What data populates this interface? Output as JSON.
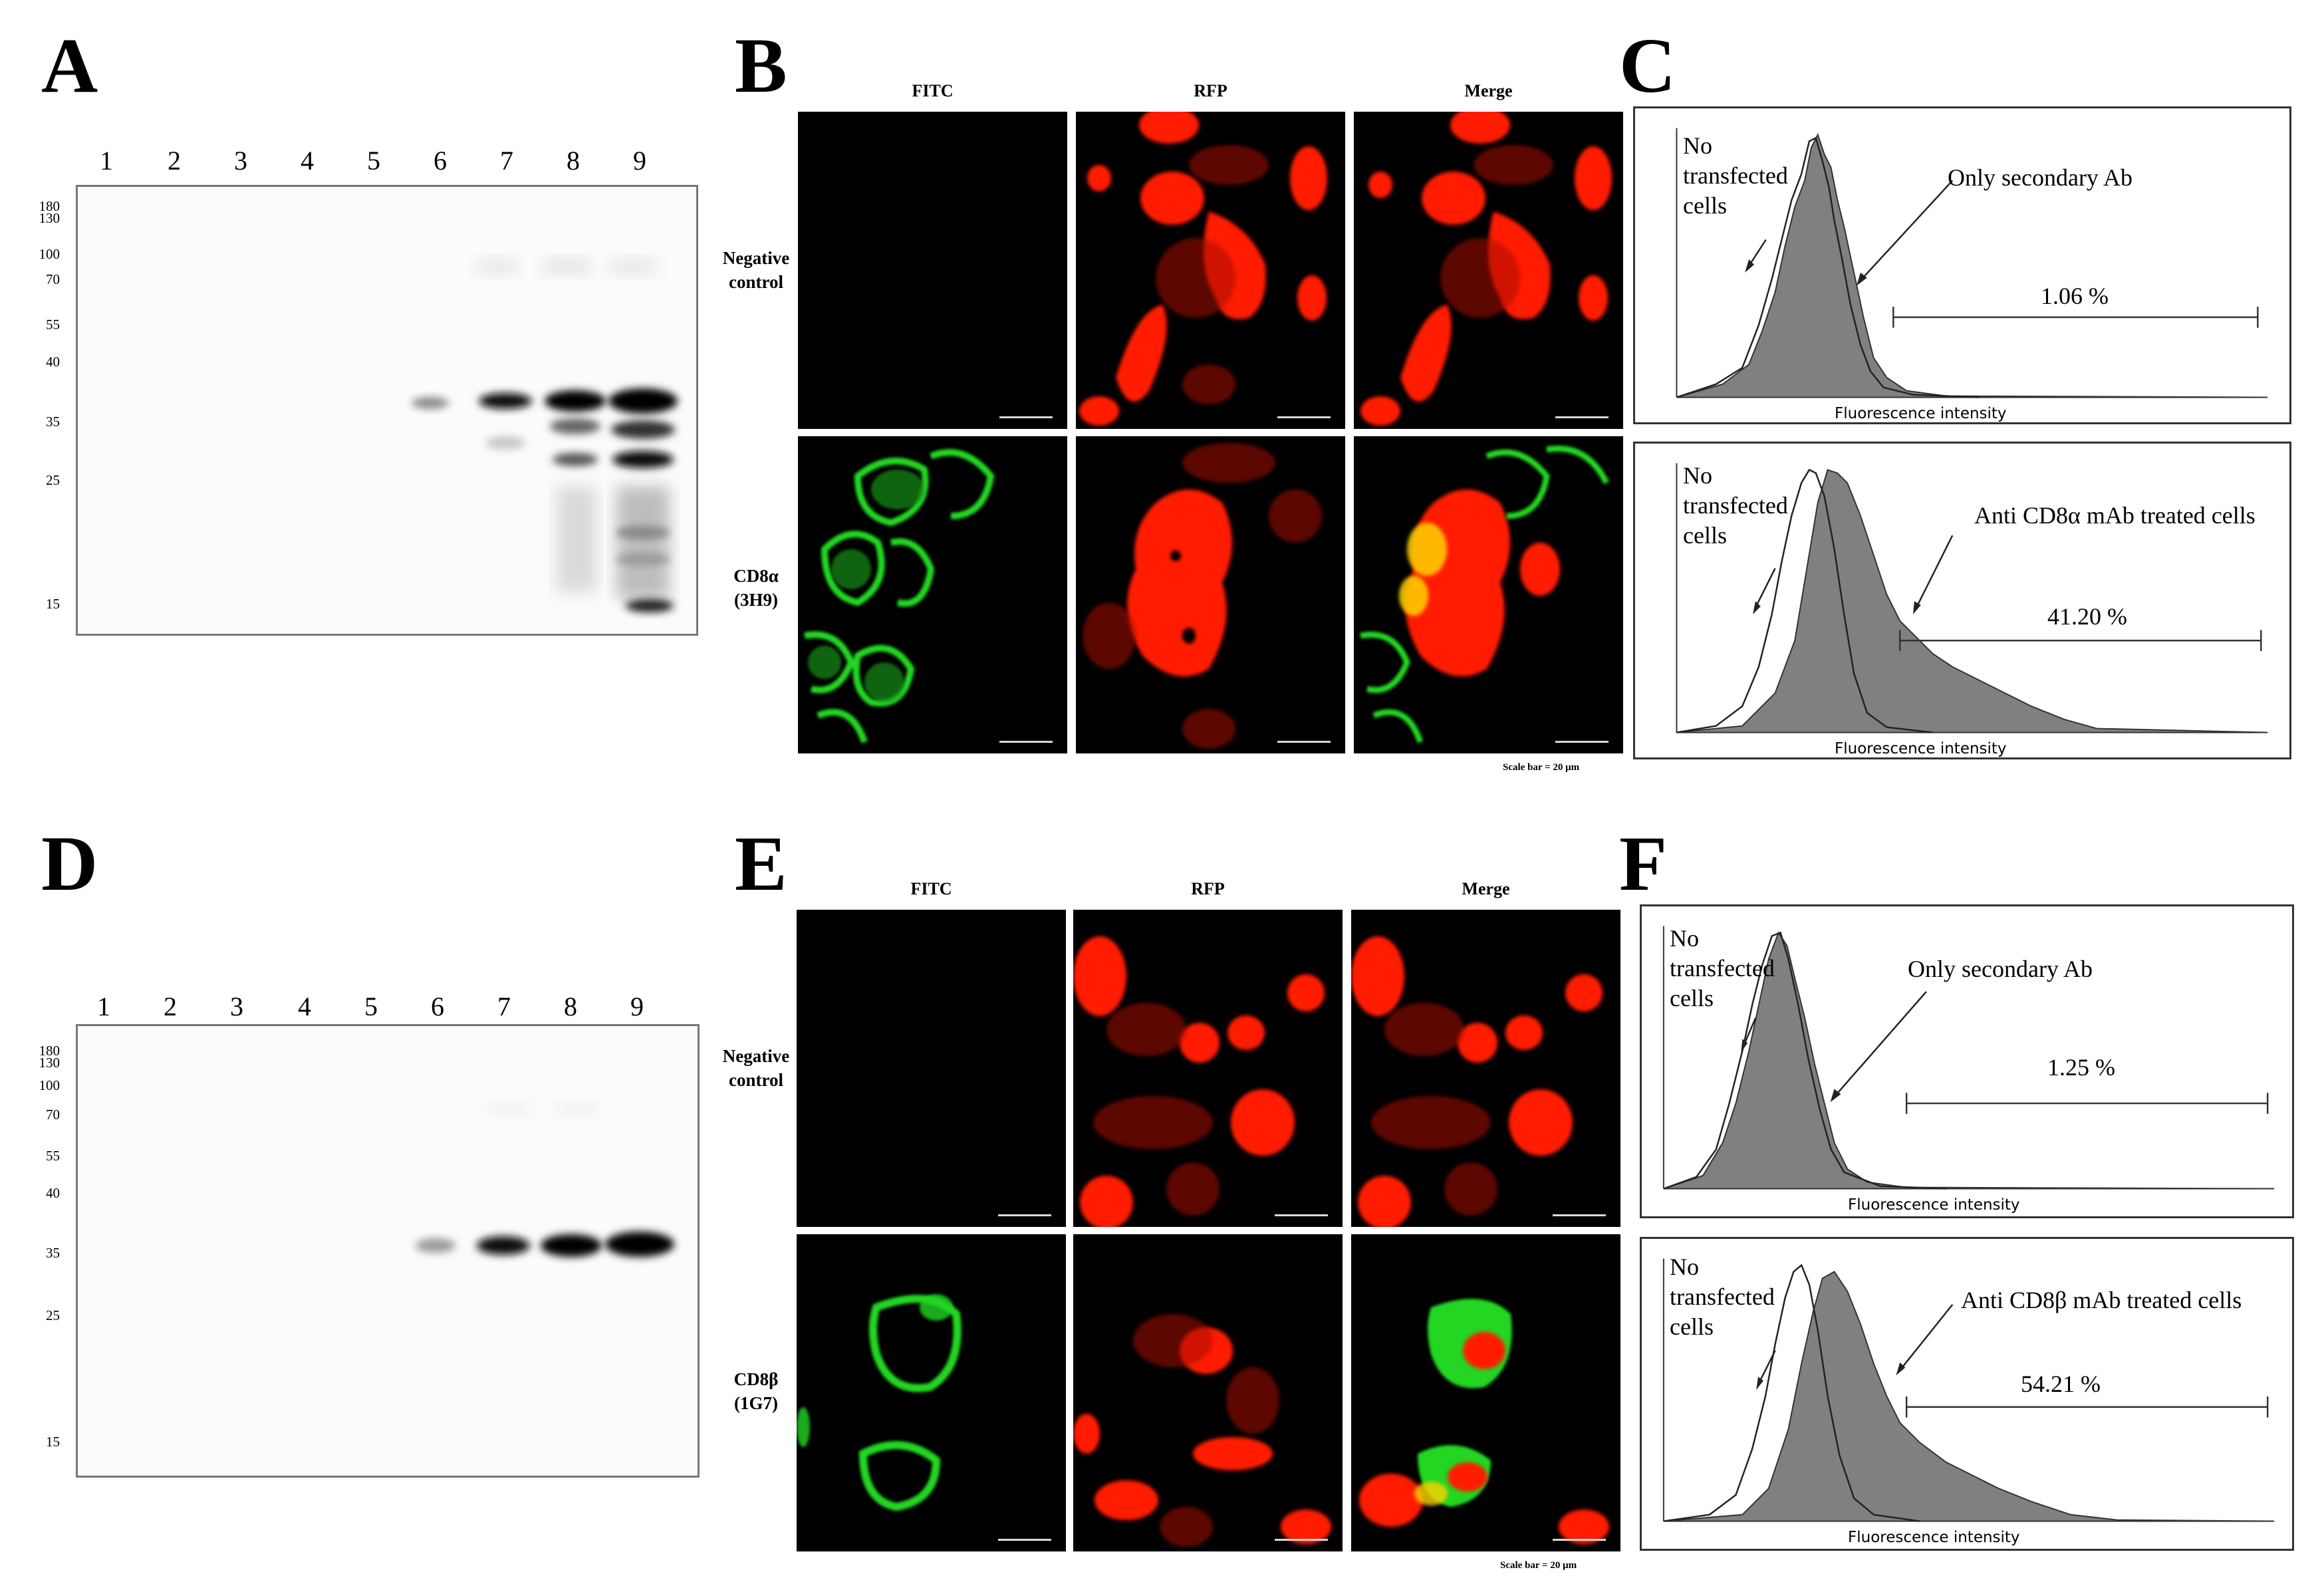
{
  "panels": {
    "A": "A",
    "B": "B",
    "C": "C",
    "D": "D",
    "E": "E",
    "F": "F"
  },
  "blot": {
    "lanes": [
      "1",
      "2",
      "3",
      "4",
      "5",
      "6",
      "7",
      "8",
      "9"
    ],
    "markers": [
      "180",
      "130",
      "100",
      "70",
      "55",
      "40",
      "35",
      "25",
      "15"
    ]
  },
  "microscopy": {
    "columns": [
      "FITC",
      "RFP",
      "Merge"
    ],
    "top": {
      "negative_row": [
        "Negative",
        "control"
      ],
      "stain_row": [
        "CD8α",
        "(3H9)"
      ]
    },
    "bottom": {
      "negative_row": [
        "Negative",
        "control"
      ],
      "stain_row": [
        "CD8β",
        "(1G7)"
      ]
    },
    "scale_note": "Scale bar = 20 μm"
  },
  "flow": {
    "axis_label": "Fluorescence intensity",
    "no_transfected": [
      "No",
      "transfected",
      "cells"
    ],
    "C_top": {
      "label": "Only secondary Ab",
      "percent": "1.06 %"
    },
    "C_bottom": {
      "label": "Anti CD8α mAb  treated cells",
      "percent": "41.20 %"
    },
    "F_top": {
      "label": "Only secondary Ab",
      "percent": "1.25 %"
    },
    "F_bottom": {
      "label": "Anti CD8β mAb  treated cells",
      "percent": "54.21 %"
    }
  },
  "colors": {
    "fitc": "#22d622",
    "rfp": "#ff1a00",
    "merge_overlap": "#ffd400",
    "hist_fill": "#808080"
  }
}
